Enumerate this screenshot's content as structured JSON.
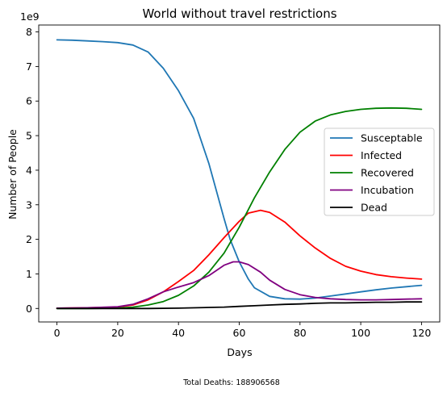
{
  "chart_data": {
    "type": "line",
    "title": "World without travel restrictions",
    "xlabel": "Days",
    "ylabel": "Number of People",
    "offset_label": "1e9",
    "xlim": [
      -6,
      126
    ],
    "ylim": [
      -0.39,
      8.2
    ],
    "xticks": [
      0,
      20,
      40,
      60,
      80,
      100,
      120
    ],
    "yticks": [
      0,
      1,
      2,
      3,
      4,
      5,
      6,
      7,
      8
    ],
    "grid": false,
    "legend_position": "center-right",
    "footer": "Total Deaths: 188906568",
    "series": [
      {
        "name": "Susceptable",
        "color": "#1f77b4",
        "points": [
          [
            0,
            7.77
          ],
          [
            5,
            7.76
          ],
          [
            10,
            7.74
          ],
          [
            15,
            7.72
          ],
          [
            20,
            7.69
          ],
          [
            25,
            7.62
          ],
          [
            30,
            7.42
          ],
          [
            35,
            6.95
          ],
          [
            40,
            6.3
          ],
          [
            45,
            5.5
          ],
          [
            50,
            4.2
          ],
          [
            55,
            2.6
          ],
          [
            57,
            2.0
          ],
          [
            60,
            1.35
          ],
          [
            63,
            0.85
          ],
          [
            65,
            0.6
          ],
          [
            70,
            0.35
          ],
          [
            75,
            0.28
          ],
          [
            80,
            0.27
          ],
          [
            85,
            0.3
          ],
          [
            90,
            0.36
          ],
          [
            95,
            0.42
          ],
          [
            100,
            0.48
          ],
          [
            105,
            0.54
          ],
          [
            110,
            0.59
          ],
          [
            115,
            0.63
          ],
          [
            120,
            0.67
          ]
        ]
      },
      {
        "name": "Infected",
        "color": "#ff0000",
        "points": [
          [
            0,
            0.01
          ],
          [
            10,
            0.02
          ],
          [
            20,
            0.04
          ],
          [
            25,
            0.1
          ],
          [
            30,
            0.25
          ],
          [
            35,
            0.48
          ],
          [
            40,
            0.78
          ],
          [
            45,
            1.1
          ],
          [
            50,
            1.55
          ],
          [
            55,
            2.05
          ],
          [
            60,
            2.52
          ],
          [
            63,
            2.76
          ],
          [
            67,
            2.84
          ],
          [
            70,
            2.78
          ],
          [
            75,
            2.5
          ],
          [
            80,
            2.1
          ],
          [
            85,
            1.75
          ],
          [
            90,
            1.45
          ],
          [
            95,
            1.22
          ],
          [
            100,
            1.08
          ],
          [
            105,
            0.98
          ],
          [
            110,
            0.92
          ],
          [
            115,
            0.88
          ],
          [
            120,
            0.85
          ]
        ]
      },
      {
        "name": "Recovered",
        "color": "#008000",
        "points": [
          [
            0,
            0.0
          ],
          [
            10,
            0.0
          ],
          [
            20,
            0.01
          ],
          [
            25,
            0.04
          ],
          [
            30,
            0.1
          ],
          [
            35,
            0.2
          ],
          [
            40,
            0.38
          ],
          [
            45,
            0.65
          ],
          [
            50,
            1.05
          ],
          [
            55,
            1.6
          ],
          [
            60,
            2.35
          ],
          [
            65,
            3.2
          ],
          [
            70,
            3.95
          ],
          [
            75,
            4.6
          ],
          [
            80,
            5.1
          ],
          [
            85,
            5.42
          ],
          [
            90,
            5.6
          ],
          [
            95,
            5.7
          ],
          [
            100,
            5.76
          ],
          [
            105,
            5.79
          ],
          [
            110,
            5.8
          ],
          [
            115,
            5.79
          ],
          [
            120,
            5.76
          ]
        ]
      },
      {
        "name": "Incubation",
        "color": "#800080",
        "points": [
          [
            0,
            0.01
          ],
          [
            10,
            0.02
          ],
          [
            20,
            0.05
          ],
          [
            25,
            0.12
          ],
          [
            30,
            0.28
          ],
          [
            35,
            0.48
          ],
          [
            40,
            0.62
          ],
          [
            45,
            0.75
          ],
          [
            50,
            0.95
          ],
          [
            55,
            1.25
          ],
          [
            58,
            1.35
          ],
          [
            60,
            1.35
          ],
          [
            63,
            1.27
          ],
          [
            67,
            1.05
          ],
          [
            70,
            0.82
          ],
          [
            75,
            0.55
          ],
          [
            80,
            0.4
          ],
          [
            85,
            0.32
          ],
          [
            90,
            0.28
          ],
          [
            95,
            0.26
          ],
          [
            100,
            0.25
          ],
          [
            105,
            0.25
          ],
          [
            110,
            0.26
          ],
          [
            115,
            0.27
          ],
          [
            120,
            0.28
          ]
        ]
      },
      {
        "name": "Dead",
        "color": "#000000",
        "points": [
          [
            0,
            0.0
          ],
          [
            20,
            0.0
          ],
          [
            30,
            0.0
          ],
          [
            40,
            0.01
          ],
          [
            50,
            0.03
          ],
          [
            55,
            0.04
          ],
          [
            60,
            0.06
          ],
          [
            65,
            0.08
          ],
          [
            70,
            0.1
          ],
          [
            75,
            0.12
          ],
          [
            80,
            0.13
          ],
          [
            85,
            0.15
          ],
          [
            90,
            0.16
          ],
          [
            95,
            0.16
          ],
          [
            100,
            0.17
          ],
          [
            105,
            0.18
          ],
          [
            110,
            0.18
          ],
          [
            115,
            0.19
          ],
          [
            120,
            0.19
          ]
        ]
      }
    ]
  }
}
